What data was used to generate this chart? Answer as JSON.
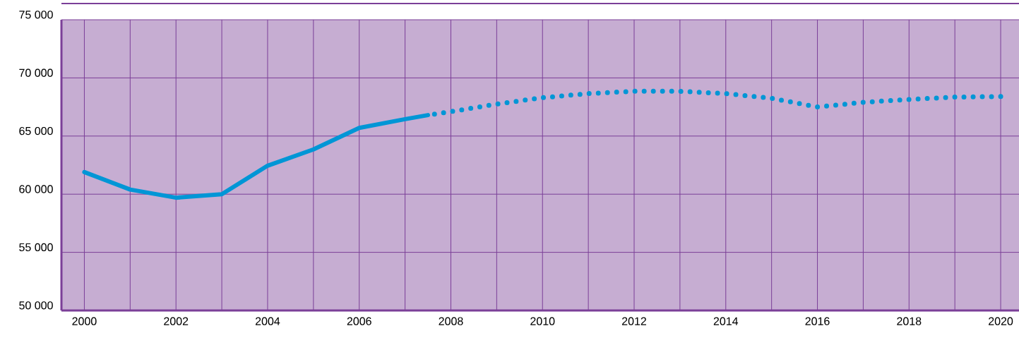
{
  "chart_data": {
    "type": "line",
    "x": [
      2000,
      2001,
      2002,
      2003,
      2004,
      2005,
      2006,
      2007,
      2007.5
    ],
    "series": [
      {
        "color": "#0096d6",
        "line_style": "solid",
        "values": [
          61900,
          60400,
          59700,
          60000,
          62450,
          63850,
          65700,
          66450,
          66800
        ]
      },
      {
        "color": "#0096d6",
        "line_style": "dotted",
        "x": [
          2007.5,
          2008,
          2009,
          2010,
          2011,
          2012,
          2013,
          2014,
          2015,
          2016,
          2017,
          2018,
          2019,
          2020
        ],
        "values": [
          66800,
          67100,
          67750,
          68300,
          68650,
          68850,
          68850,
          68650,
          68250,
          67500,
          67900,
          68150,
          68350,
          68400
        ]
      }
    ],
    "xlim": [
      1999.5,
      2020.4
    ],
    "ylim": [
      50000,
      75000
    ],
    "xticks": [
      2000,
      {
        "value": 2001,
        "label": null
      },
      2002,
      {
        "value": 2003,
        "label": null
      },
      2004,
      {
        "value": 2005,
        "label": null
      },
      2006,
      {
        "value": 2007,
        "label": null
      },
      2008,
      {
        "value": 2009,
        "label": null
      },
      2010,
      {
        "value": 2011,
        "label": null
      },
      2012,
      {
        "value": 2013,
        "label": null
      },
      2014,
      {
        "value": 2015,
        "label": null
      },
      2016,
      {
        "value": 2017,
        "label": null
      },
      2018,
      {
        "value": 2019,
        "label": null
      },
      2020
    ],
    "yticks": [
      {
        "value": 50000,
        "label": "50 000"
      },
      {
        "value": 55000,
        "label": "55 000"
      },
      {
        "value": 60000,
        "label": "60 000"
      },
      {
        "value": 65000,
        "label": "65 000"
      },
      {
        "value": 70000,
        "label": "70 000"
      },
      {
        "value": 75000,
        "label": "75 000"
      }
    ],
    "grid": true,
    "marker": "none"
  }
}
